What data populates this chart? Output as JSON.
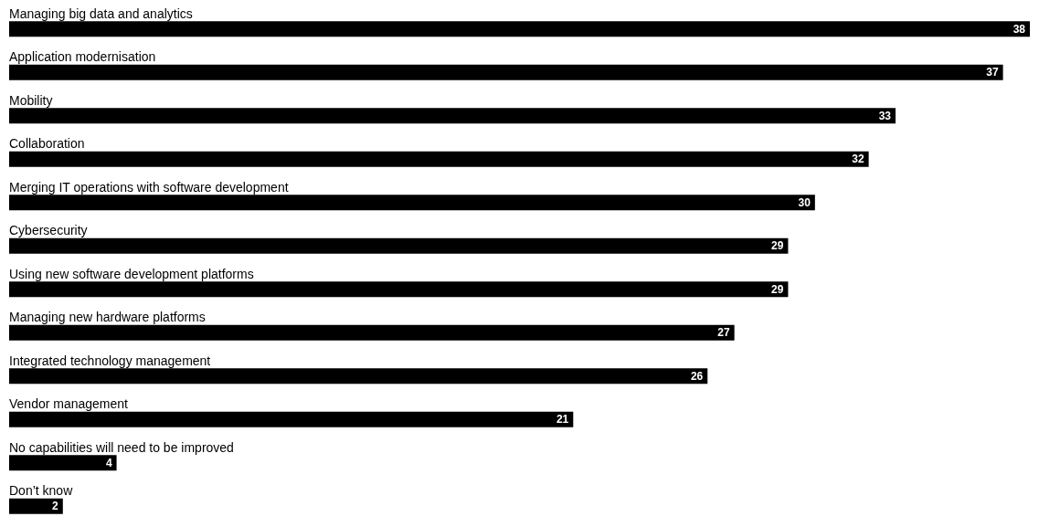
{
  "chart_data": {
    "type": "bar",
    "orientation": "horizontal",
    "data_labels": true,
    "color": "#000000",
    "categories": [
      "Managing big data and analytics",
      "Application modernisation",
      "Mobility",
      "Collaboration",
      "Merging IT operations with software development",
      "Cybersecurity",
      "Using new software development platforms",
      "Managing new hardware platforms",
      "Integrated technology management",
      "Vendor management",
      "No capabilities will need to be improved",
      "Don’t know"
    ],
    "values": [
      38,
      37,
      33,
      32,
      30,
      29,
      29,
      27,
      26,
      21,
      4,
      2
    ]
  }
}
